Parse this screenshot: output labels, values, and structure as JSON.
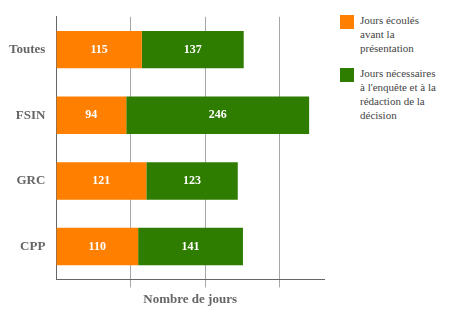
{
  "chart_data": {
    "type": "bar",
    "orientation": "horizontal",
    "stacked": true,
    "categories": [
      "Toutes",
      "FSIN",
      "GRC",
      "CPP"
    ],
    "series": [
      {
        "name": "Jours écoulés\navant la\nprésentation",
        "color": "#FF7F00",
        "values": [
          115,
          94,
          121,
          110
        ]
      },
      {
        "name": "Jours nécessaires\nà l'enquête et à la\nrédaction de la\ndécision",
        "color": "#2E7D00",
        "values": [
          137,
          246,
          123,
          141
        ]
      }
    ],
    "xlabel": "Nombre de jours",
    "xlim": [
      0,
      360
    ],
    "xticks": [
      100,
      200,
      300
    ],
    "grid": true,
    "tick_labels": "y",
    "data_labels": true,
    "legend": "right"
  }
}
